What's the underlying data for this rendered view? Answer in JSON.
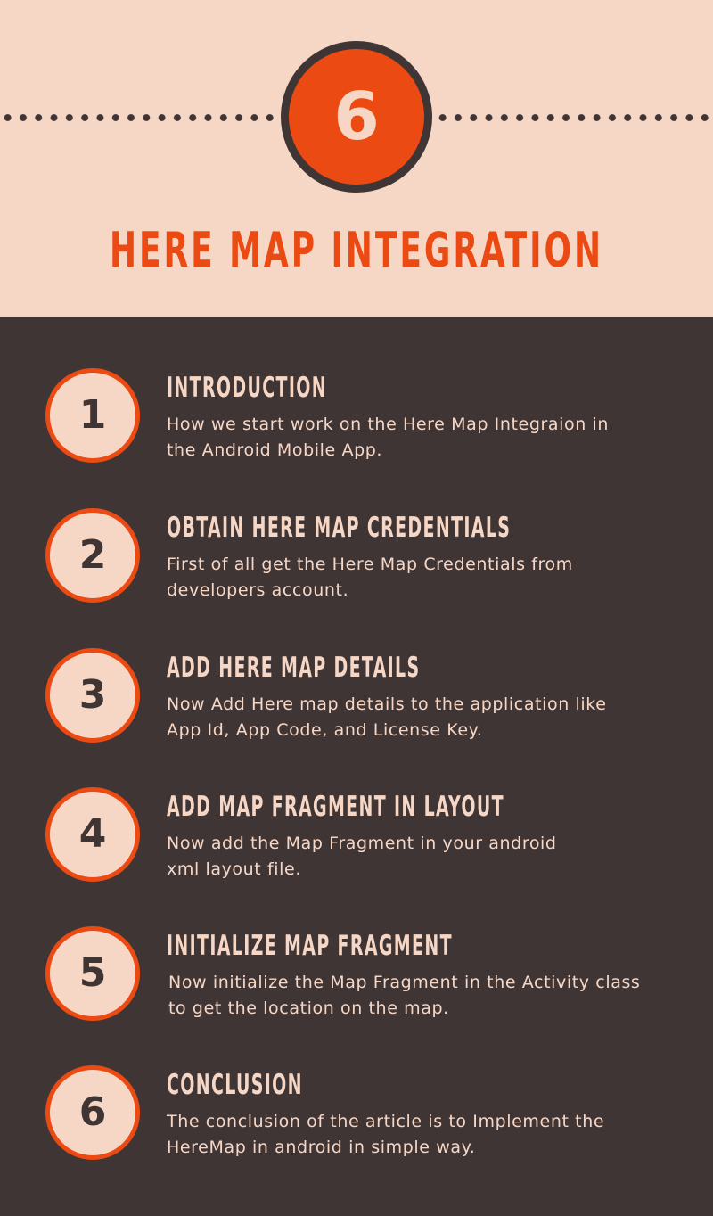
{
  "header": {
    "badge_number": "6",
    "title": "HERE MAP INTEGRATION"
  },
  "steps": [
    {
      "number": "1",
      "title": "INTRODUCTION",
      "line1": "How we start work on the Here Map Integraion in",
      "line2": "the Android Mobile App."
    },
    {
      "number": "2",
      "title": "OBTAIN HERE MAP CREDENTIALS",
      "line1": "First of all get the Here Map Credentials from",
      "line2": "developers account."
    },
    {
      "number": "3",
      "title": "ADD HERE MAP DETAILS",
      "line1": "Now Add Here map details to the application like",
      "line2": "App Id, App Code, and License Key."
    },
    {
      "number": "4",
      "title": "ADD MAP FRAGMENT IN LAYOUT",
      "line1": "Now add the Map Fragment in your android",
      "line2": "xml layout file."
    },
    {
      "number": "5",
      "title": "INITIALIZE MAP FRAGMENT",
      "line1": "Now initialize the Map Fragment in the Activity class",
      "line2": "to get the location on the map."
    },
    {
      "number": "6",
      "title": "CONCLUSION",
      "line1": "The conclusion of the article is to Implement the",
      "line2": "HereMap in android in simple way."
    }
  ],
  "colors": {
    "accent": "#ec4a13",
    "header_bg": "#f6d7c6",
    "body_bg": "#403535"
  }
}
